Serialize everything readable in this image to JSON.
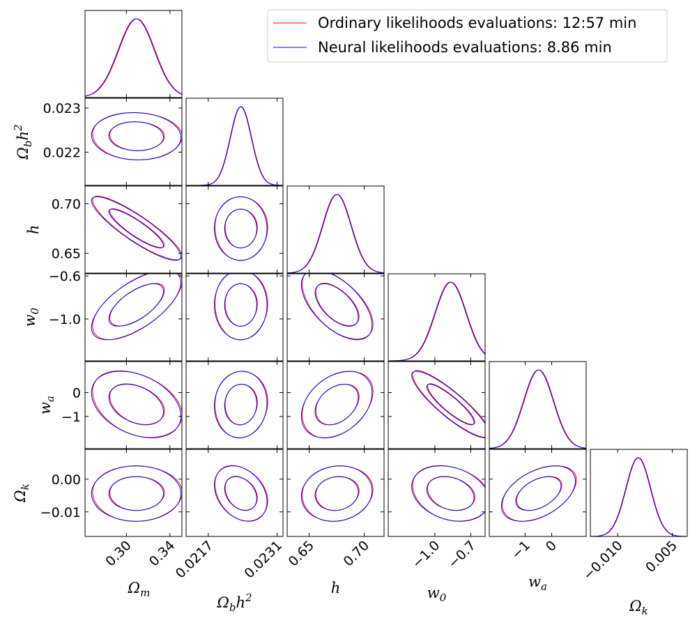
{
  "chart_data": {
    "type": "corner",
    "title": "",
    "params": [
      {
        "id": "Om",
        "label": "Ω",
        "sub": "m",
        "sup": "",
        "range": [
          0.262,
          0.351
        ],
        "mean": 0.309,
        "sd": 0.0165,
        "xticks": [
          {
            "v": 0.3,
            "t": "0.30"
          },
          {
            "v": 0.34,
            "t": "0.34"
          }
        ],
        "yticks": []
      },
      {
        "id": "Obh2",
        "label": "Ω",
        "sub": "b",
        "sup": "",
        "suffix": "h",
        "suffix_sup": "2",
        "range": [
          0.02125,
          0.02322
        ],
        "mean": 0.02236,
        "sd": 0.000215,
        "xticks": [
          {
            "v": 0.0217,
            "t": "0.0217"
          },
          {
            "v": 0.0231,
            "t": "0.0231"
          }
        ],
        "yticks": [
          {
            "v": 0.023,
            "t": "0.023"
          },
          {
            "v": 0.022,
            "t": "0.022"
          }
        ]
      },
      {
        "id": "h",
        "label": "h",
        "sub": "",
        "sup": "",
        "range": [
          0.63,
          0.718
        ],
        "mean": 0.675,
        "sd": 0.0129,
        "xticks": [
          {
            "v": 0.65,
            "t": "0.65"
          },
          {
            "v": 0.7,
            "t": "0.70"
          }
        ],
        "yticks": [
          {
            "v": 0.7,
            "t": "0.70"
          },
          {
            "v": 0.65,
            "t": "0.65"
          }
        ]
      },
      {
        "id": "w0",
        "label": "w",
        "sub": "0",
        "sup": "",
        "range": [
          -1.39,
          -0.58
        ],
        "mean": -0.87,
        "sd": 0.13,
        "xticks": [
          {
            "v": -1.0,
            "t": "−1.0"
          },
          {
            "v": -0.7,
            "t": "−0.7"
          }
        ],
        "yticks": [
          {
            "v": -0.6,
            "t": "−0.6"
          },
          {
            "v": -1.0,
            "t": "−1.0"
          }
        ]
      },
      {
        "id": "wa",
        "label": "w",
        "sub": "a",
        "sup": "",
        "range": [
          -2.35,
          1.3
        ],
        "mean": -0.5,
        "sd": 0.56,
        "xticks": [
          {
            "v": -1,
            "t": "−1"
          },
          {
            "v": 0,
            "t": "0"
          }
        ],
        "yticks": [
          {
            "v": 0,
            "t": "0"
          },
          {
            "v": -1,
            "t": "−1"
          }
        ]
      },
      {
        "id": "Ok",
        "label": "Ω",
        "sub": "k",
        "sup": "",
        "range": [
          -0.0175,
          0.0091
        ],
        "mean": -0.0044,
        "sd": 0.0034,
        "xticks": [
          {
            "v": -0.01,
            "t": "−0.010"
          },
          {
            "v": 0.005,
            "t": "0.005"
          }
        ],
        "yticks": [
          {
            "v": 0.0,
            "t": "0.00"
          },
          {
            "v": -0.01,
            "t": "−0.01"
          }
        ]
      }
    ],
    "correlations": {
      "1-0": -0.05,
      "2-0": -0.88,
      "2-1": 0.0,
      "3-0": 0.65,
      "3-1": 0.0,
      "3-2": -0.58,
      "4-0": -0.35,
      "4-1": 0.05,
      "4-2": 0.35,
      "4-3": -0.88,
      "5-0": 0.0,
      "5-1": -0.3,
      "5-2": 0.1,
      "5-3": -0.25,
      "5-4": 0.45
    },
    "series": [
      {
        "name": "Ordinary likelihoods evaluations: 12:57 min",
        "color": "#ff0000",
        "shift": 0.04
      },
      {
        "name": "Neural likelihoods evaluations: 8.86 min",
        "color": "#0000ff",
        "shift": 0.0
      }
    ],
    "contour_levels": [
      "68%",
      "95%"
    ],
    "legend_position": "top-right"
  }
}
